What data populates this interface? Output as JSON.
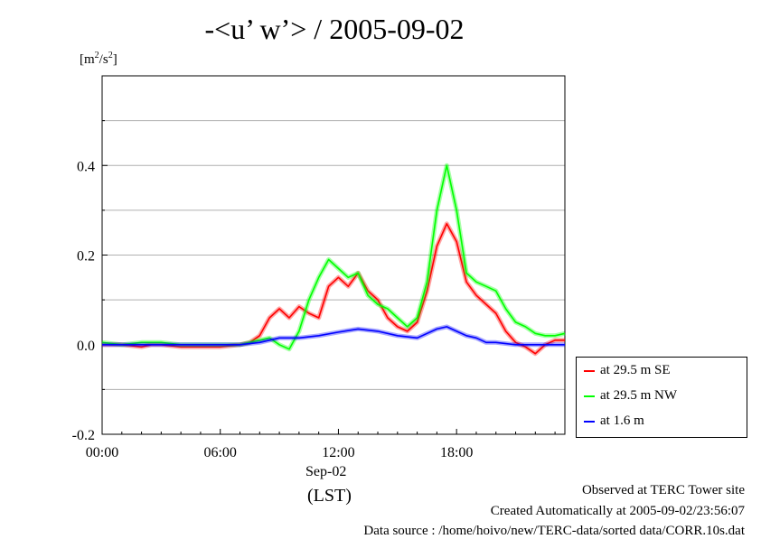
{
  "chart_data": {
    "type": "line",
    "title": "-<u’ w’> / 2005-09-02",
    "ylabel_unit": {
      "base": "[m",
      "exp1": "2",
      "mid": "/s",
      "exp2": "2",
      "end": "]"
    },
    "x_date_label": "Sep-02",
    "x_timezone_label": "(LST)",
    "x_ticks": [
      "00:00",
      "06:00",
      "12:00",
      "18:00"
    ],
    "x_tick_hours": [
      0,
      6,
      12,
      18
    ],
    "xlim_hours": [
      0,
      23.5
    ],
    "y_ticks": [
      "-0.2",
      "0.0",
      "0.2",
      "0.4"
    ],
    "y_tick_values": [
      -0.2,
      0.0,
      0.2,
      0.4
    ],
    "ylim": [
      -0.2,
      0.6
    ],
    "grid": true,
    "legend_position": "right-bottom-outside",
    "series": [
      {
        "name": "at 29.5 m SE",
        "color": "#ff0000",
        "x": [
          0,
          1,
          2,
          2.5,
          3,
          4,
          5,
          6,
          7,
          7.5,
          8,
          8.5,
          9,
          9.5,
          10,
          10.5,
          11,
          11.5,
          12,
          12.5,
          13,
          13.5,
          14,
          14.5,
          15,
          15.5,
          16,
          16.5,
          17,
          17.5,
          18,
          18.5,
          19,
          19.5,
          20,
          20.5,
          21,
          21.5,
          22,
          22.5,
          23,
          23.5
        ],
        "y": [
          0.0,
          0.0,
          -0.005,
          0.0,
          0.0,
          -0.005,
          -0.005,
          -0.005,
          0.0,
          0.005,
          0.02,
          0.06,
          0.08,
          0.06,
          0.085,
          0.07,
          0.06,
          0.13,
          0.15,
          0.13,
          0.16,
          0.12,
          0.1,
          0.06,
          0.04,
          0.03,
          0.05,
          0.12,
          0.22,
          0.27,
          0.23,
          0.14,
          0.11,
          0.09,
          0.07,
          0.03,
          0.005,
          -0.005,
          -0.02,
          0.0,
          0.01,
          0.01
        ]
      },
      {
        "name": "at 29.5 m NW",
        "color": "#00ff00",
        "x": [
          0,
          1,
          2,
          2.5,
          3,
          4,
          5,
          6,
          7,
          7.5,
          8,
          8.5,
          9,
          9.5,
          10,
          10.5,
          11,
          11.5,
          12,
          12.5,
          13,
          13.5,
          14,
          14.5,
          15,
          15.5,
          16,
          16.5,
          17,
          17.5,
          18,
          18.5,
          19,
          19.5,
          20,
          20.5,
          21,
          21.5,
          22,
          22.5,
          23,
          23.5
        ],
        "y": [
          0.005,
          0.0,
          0.005,
          0.005,
          0.005,
          0.0,
          0.0,
          0.0,
          0.0,
          0.005,
          0.01,
          0.015,
          0.0,
          -0.01,
          0.03,
          0.1,
          0.15,
          0.19,
          0.17,
          0.15,
          0.16,
          0.11,
          0.09,
          0.08,
          0.06,
          0.04,
          0.06,
          0.14,
          0.3,
          0.4,
          0.3,
          0.16,
          0.14,
          0.13,
          0.12,
          0.08,
          0.05,
          0.04,
          0.025,
          0.02,
          0.02,
          0.025
        ]
      },
      {
        "name": "at 1.6 m",
        "color": "#0000ff",
        "x": [
          0,
          2,
          4,
          6,
          7,
          8,
          9,
          10,
          11,
          12,
          13,
          14,
          15,
          16,
          17,
          17.5,
          18,
          18.5,
          19,
          19.5,
          20,
          21,
          22,
          23,
          23.5
        ],
        "y": [
          0.0,
          0.0,
          0.0,
          0.0,
          0.0,
          0.005,
          0.015,
          0.015,
          0.02,
          0.028,
          0.035,
          0.03,
          0.02,
          0.015,
          0.035,
          0.04,
          0.03,
          0.02,
          0.015,
          0.005,
          0.005,
          0.0,
          0.0,
          0.0,
          0.0
        ]
      }
    ]
  },
  "footer": {
    "line1": "Observed at TERC Tower site",
    "line2": "Created Automatically at 2005-09-02/23:56:07",
    "line3": "Data source : /home/hoivo/new/TERC-data/sorted  data/CORR.10s.dat"
  }
}
